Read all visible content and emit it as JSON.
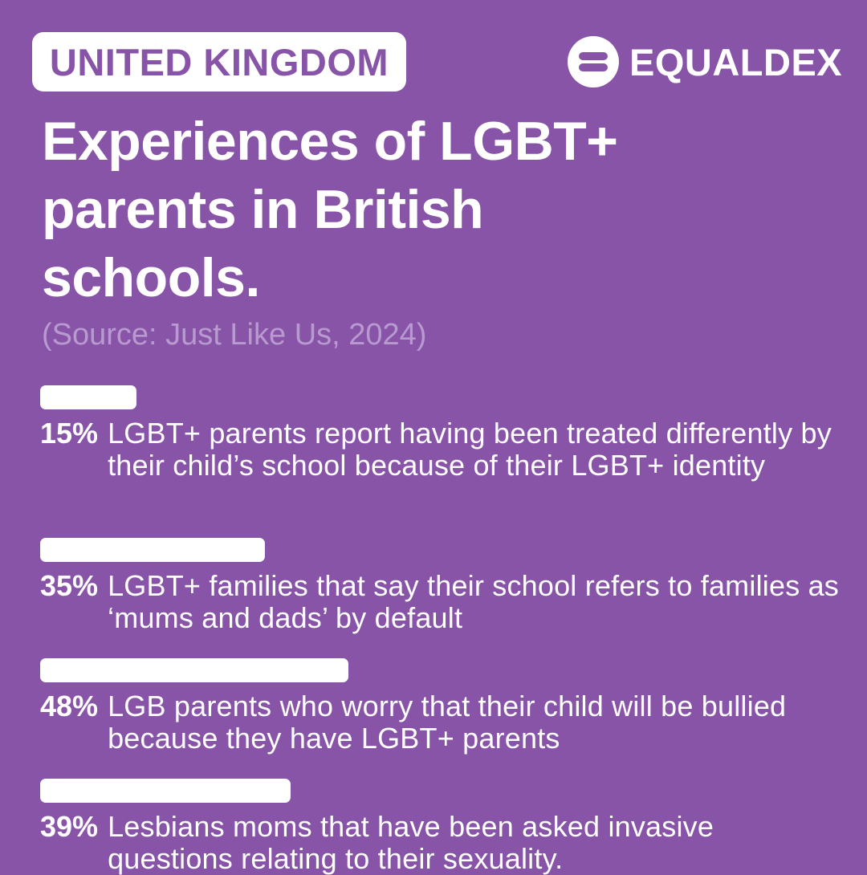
{
  "header": {
    "country": "UNITED KINGDOM",
    "brand": "EQUALDEX",
    "brand_logo_icon": "equaldex-logo-icon"
  },
  "title": "Experiences of LGBT+ parents in British schools.",
  "source": "(Source: Just Like Us, 2024)",
  "colors": {
    "background": "#8854a8",
    "bar": "#ffffff",
    "source_text": "#b99ad0"
  },
  "chart_data": {
    "type": "bar",
    "orientation": "horizontal",
    "title": "Experiences of LGBT+ parents in British schools.",
    "xlim": [
      0,
      100
    ],
    "grid": false,
    "categories": [
      "LGBT+ parents report having been treated differently by their child’s school because of their LGBT+ identity",
      "LGBT+ families that say their school refers to families as ‘mums and dads’ by default",
      "LGB parents who worry that their child will be bullied because they have LGBT+ parents",
      "Lesbians moms that have been asked invasive questions relating to their sexuality."
    ],
    "values": [
      15,
      35,
      48,
      39
    ],
    "value_labels": [
      "15%",
      "35%",
      "48%",
      "39%"
    ]
  }
}
